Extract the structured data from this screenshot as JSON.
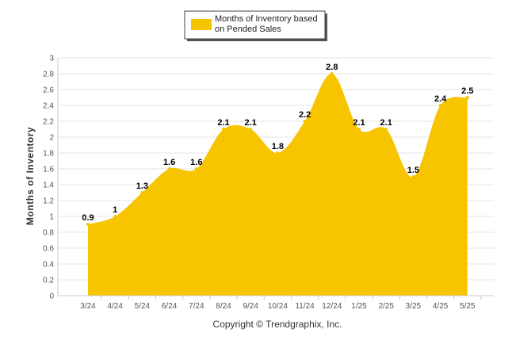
{
  "chart_data": {
    "type": "area",
    "categories": [
      "3/24",
      "4/24",
      "5/24",
      "6/24",
      "7/24",
      "8/24",
      "9/24",
      "10/24",
      "11/24",
      "12/24",
      "1/25",
      "2/25",
      "3/25",
      "4/25",
      "5/25"
    ],
    "series": [
      {
        "name": "Months of Inventory based on Pended Sales",
        "values": [
          0.9,
          1,
          1.3,
          1.6,
          1.6,
          2.1,
          2.1,
          1.8,
          2.2,
          2.8,
          2.1,
          2.1,
          1.5,
          2.4,
          2.5
        ],
        "labels": [
          "0.9",
          "1",
          "1.3",
          "1.6",
          "1.6",
          "2.1",
          "2.1",
          "1.8",
          "2.2",
          "2.8",
          "2.1",
          "2.1",
          "1.5",
          "2.4",
          "2.5"
        ]
      }
    ],
    "ylabel": "Months of Inventory",
    "ylim": [
      0,
      3
    ],
    "yticks": [
      "0",
      "0.2",
      "0.4",
      "0.6",
      "0.8",
      "1",
      "1.2",
      "1.4",
      "1.6",
      "1.8",
      "2",
      "2.2",
      "2.4",
      "2.6",
      "2.8",
      "3"
    ],
    "grid": true,
    "legend": "top-center",
    "colors": {
      "fill": "#f7c400",
      "grid": "#e6e6e6",
      "axis": "#cccccc"
    }
  },
  "legend": {
    "line1": "Months of Inventory based",
    "line2": "on Pended Sales"
  },
  "footer": {
    "copyright": "Copyright © Trendgraphix, Inc."
  }
}
